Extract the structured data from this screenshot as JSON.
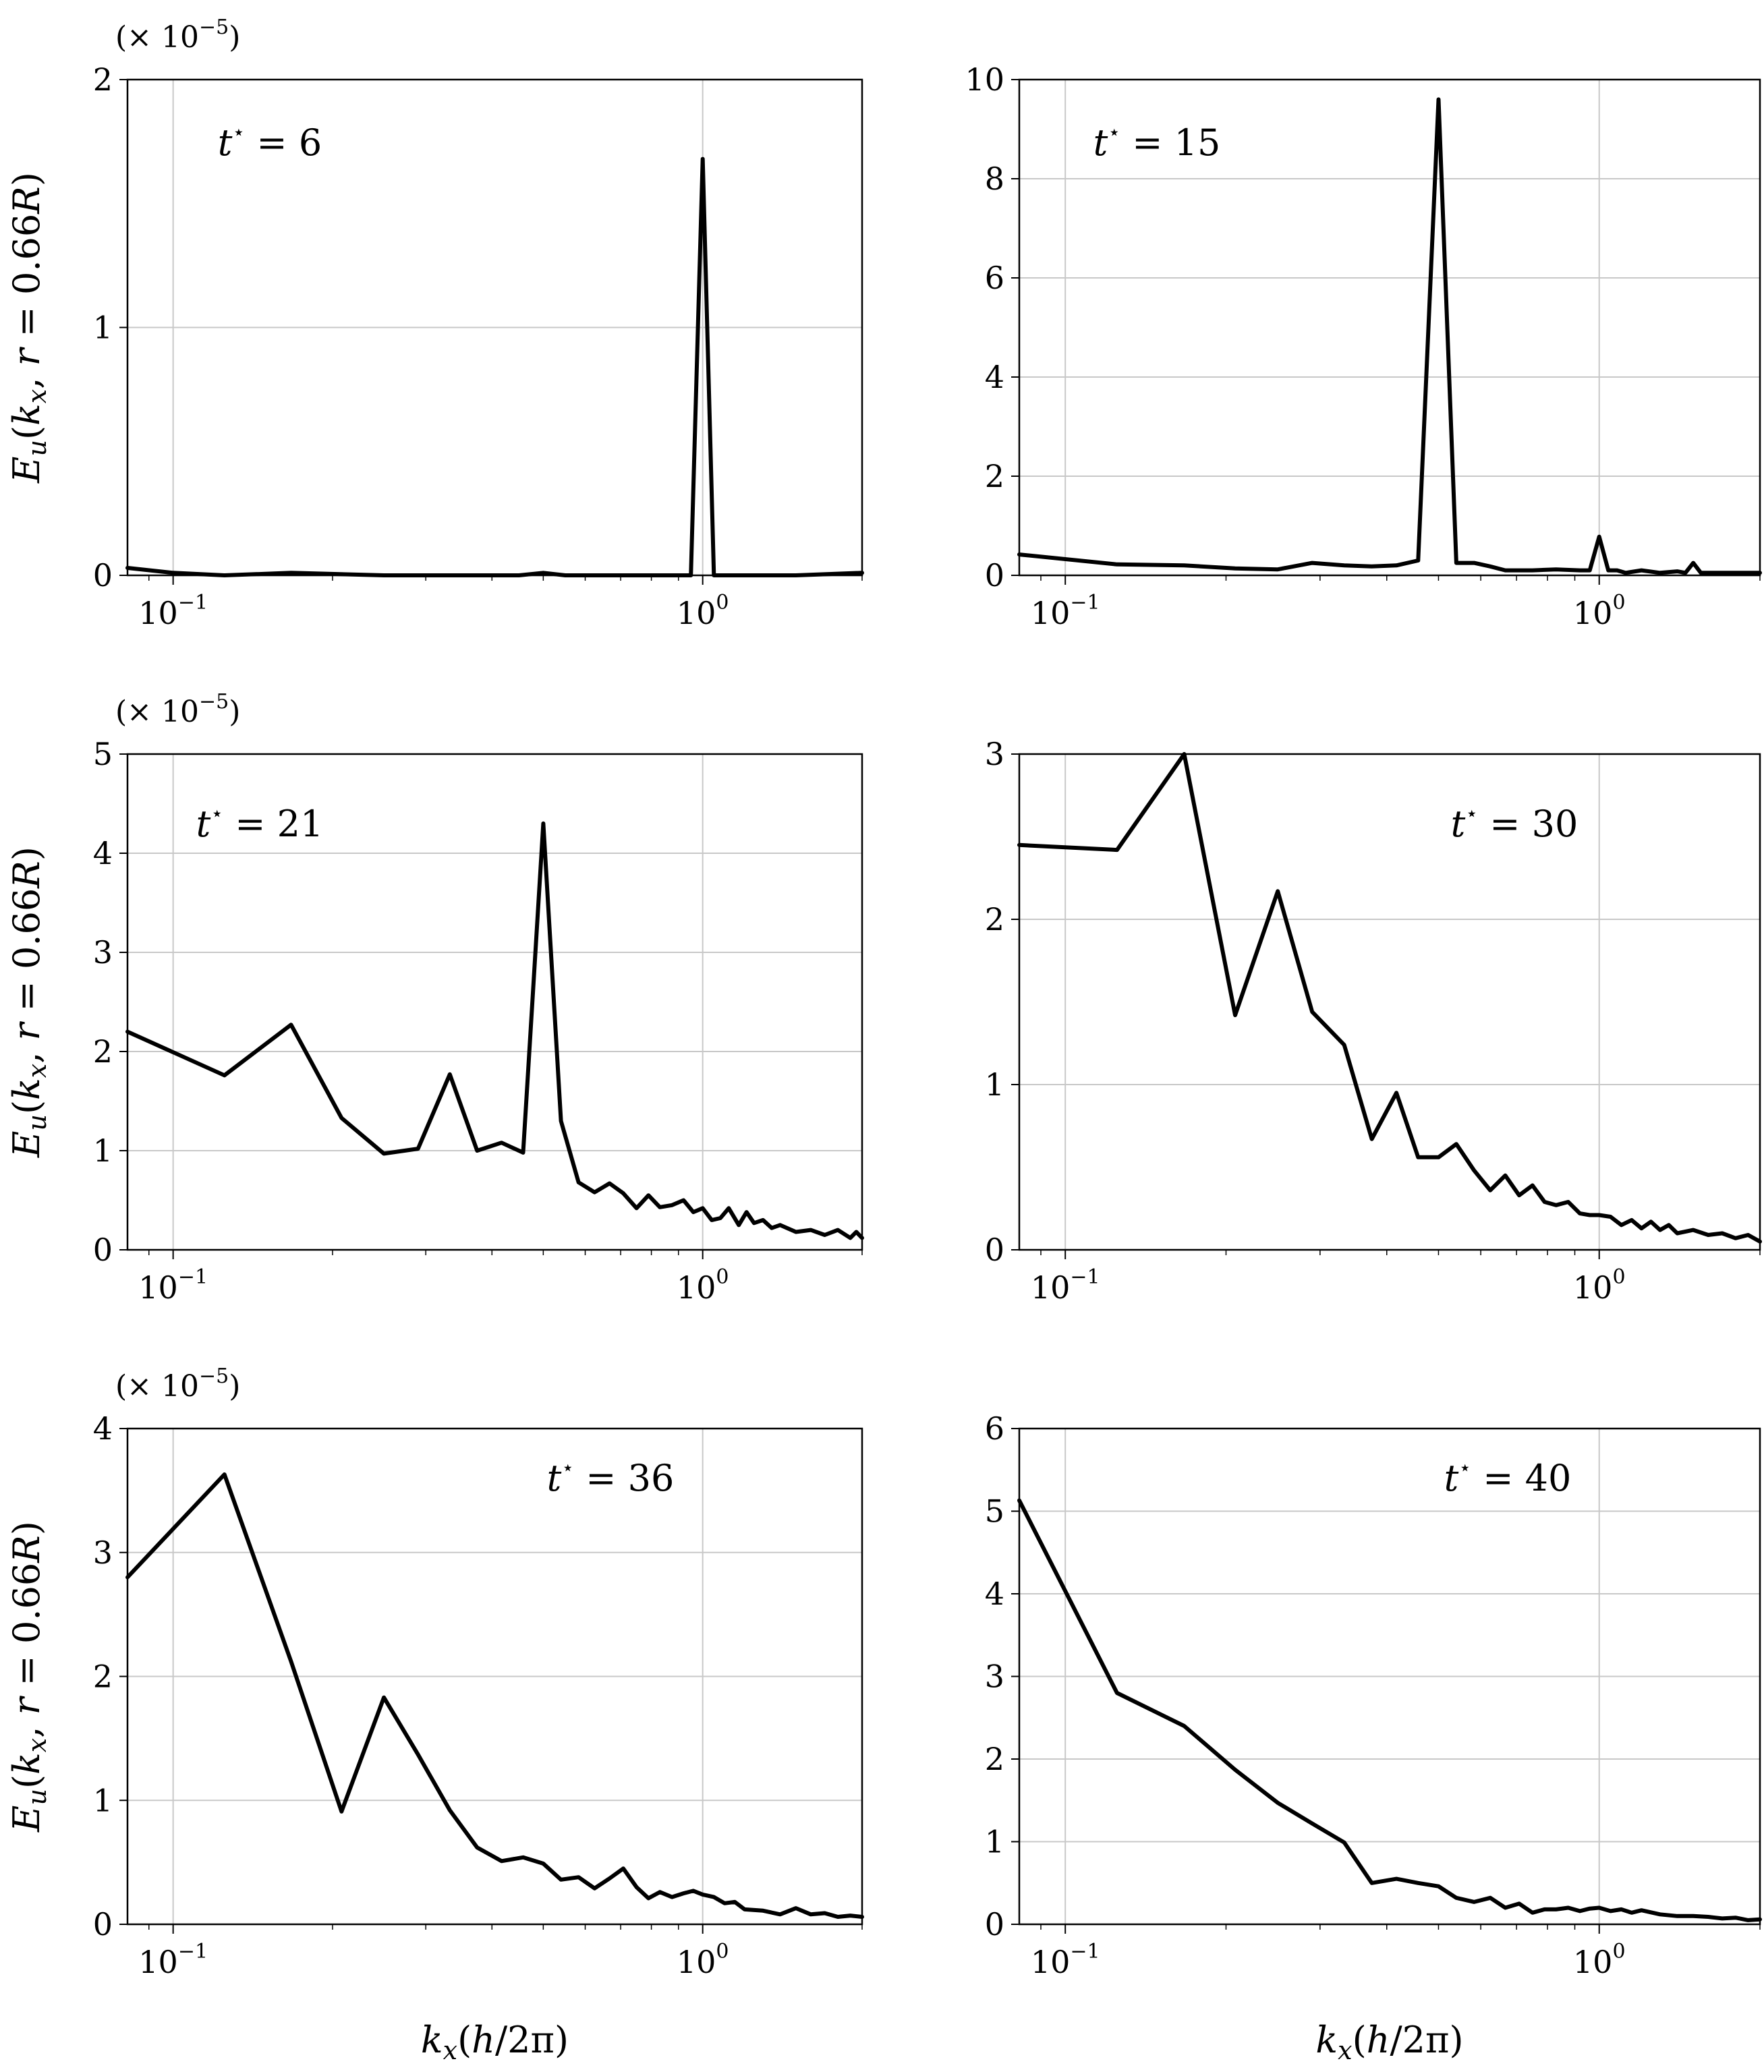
{
  "figure": {
    "ylabel_shared": "E_u(k_x, r = 0.66R)",
    "xlabel_shared": "k_x(h/2π)"
  },
  "chart_data": [
    {
      "type": "line",
      "panel": "top-left",
      "annotation": {
        "symbol": "t",
        "sup": "⋆",
        "rest": " = 6"
      },
      "multiplier": {
        "base": "(× 10",
        "exp": "−5",
        "close": ")"
      },
      "xscale": "log",
      "xlim": [
        0.082,
        2.0
      ],
      "ylim": [
        0,
        2
      ],
      "yticks": [
        0,
        1,
        2
      ],
      "yticklabels": [
        "0",
        "1",
        "2"
      ],
      "xticks": [
        {
          "value": 0.1,
          "base": "10",
          "exp": "−1"
        },
        {
          "value": 1.0,
          "base": "10",
          "exp": "0"
        }
      ],
      "ylabel": "E_u(k_x, r = 0.66R)",
      "xlabel": "",
      "series": [
        {
          "name": "t*=6",
          "x": [
            0.082,
            0.1,
            0.125,
            0.167,
            0.25,
            0.333,
            0.45,
            0.5,
            0.55,
            0.6,
            0.95,
            1.0,
            1.05,
            1.1,
            1.5,
            2.0
          ],
          "y": [
            0.03,
            0.01,
            0.0,
            0.01,
            0.0,
            0.0,
            0.0,
            0.01,
            0.0,
            0.0,
            0.0,
            1.68,
            0.0,
            0.0,
            0.0,
            0.01
          ]
        }
      ]
    },
    {
      "type": "line",
      "panel": "top-right",
      "annotation": {
        "symbol": "t",
        "sup": "⋆",
        "rest": " = 15"
      },
      "multiplier": null,
      "xscale": "log",
      "xlim": [
        0.082,
        2.0
      ],
      "ylim": [
        0,
        10
      ],
      "yticks": [
        0,
        2,
        4,
        6,
        8,
        10
      ],
      "yticklabels": [
        "0",
        "2",
        "4",
        "6",
        "8",
        "10"
      ],
      "xticks": [
        {
          "value": 0.1,
          "base": "10",
          "exp": "−1"
        },
        {
          "value": 1.0,
          "base": "10",
          "exp": "0"
        }
      ],
      "ylabel": "",
      "xlabel": "",
      "series": [
        {
          "name": "t*=15",
          "x": [
            0.082,
            0.125,
            0.167,
            0.208,
            0.25,
            0.29,
            0.333,
            0.375,
            0.417,
            0.458,
            0.5,
            0.54,
            0.583,
            0.625,
            0.667,
            0.75,
            0.83,
            0.92,
            0.96,
            1.0,
            1.04,
            1.08,
            1.12,
            1.2,
            1.3,
            1.4,
            1.45,
            1.5,
            1.55,
            1.7,
            2.0
          ],
          "y": [
            0.42,
            0.22,
            0.2,
            0.14,
            0.12,
            0.25,
            0.2,
            0.18,
            0.2,
            0.3,
            9.6,
            0.25,
            0.25,
            0.18,
            0.1,
            0.1,
            0.12,
            0.1,
            0.1,
            0.78,
            0.1,
            0.1,
            0.05,
            0.1,
            0.05,
            0.08,
            0.05,
            0.25,
            0.05,
            0.05,
            0.05
          ]
        }
      ]
    },
    {
      "type": "line",
      "panel": "middle-left",
      "annotation": {
        "symbol": "t",
        "sup": "⋆",
        "rest": " = 21"
      },
      "multiplier": {
        "base": "(× 10",
        "exp": "−5",
        "close": ")"
      },
      "xscale": "log",
      "xlim": [
        0.082,
        2.0
      ],
      "ylim": [
        0,
        5
      ],
      "yticks": [
        0,
        1,
        2,
        3,
        4,
        5
      ],
      "yticklabels": [
        "0",
        "1",
        "2",
        "3",
        "4",
        "5"
      ],
      "xticks": [
        {
          "value": 0.1,
          "base": "10",
          "exp": "−1"
        },
        {
          "value": 1.0,
          "base": "10",
          "exp": "0"
        }
      ],
      "ylabel": "E_u(k_x, r = 0.66R)",
      "xlabel": "",
      "series": [
        {
          "name": "t*=21",
          "x": [
            0.082,
            0.125,
            0.167,
            0.208,
            0.25,
            0.29,
            0.333,
            0.375,
            0.417,
            0.458,
            0.5,
            0.54,
            0.583,
            0.625,
            0.667,
            0.708,
            0.75,
            0.79,
            0.83,
            0.875,
            0.92,
            0.96,
            1.0,
            1.04,
            1.08,
            1.12,
            1.17,
            1.21,
            1.25,
            1.3,
            1.35,
            1.4,
            1.5,
            1.6,
            1.7,
            1.8,
            1.9,
            1.95,
            2.0
          ],
          "y": [
            2.2,
            1.76,
            2.27,
            1.33,
            0.97,
            1.02,
            1.77,
            1.0,
            1.08,
            0.98,
            4.3,
            1.3,
            0.68,
            0.58,
            0.67,
            0.57,
            0.42,
            0.55,
            0.43,
            0.45,
            0.5,
            0.38,
            0.42,
            0.3,
            0.32,
            0.42,
            0.25,
            0.38,
            0.27,
            0.3,
            0.22,
            0.25,
            0.18,
            0.2,
            0.15,
            0.2,
            0.12,
            0.18,
            0.12
          ]
        }
      ]
    },
    {
      "type": "line",
      "panel": "middle-right",
      "annotation": {
        "symbol": "t",
        "sup": "⋆",
        "rest": " = 30"
      },
      "multiplier": null,
      "xscale": "log",
      "xlim": [
        0.082,
        2.0
      ],
      "ylim": [
        0,
        3
      ],
      "yticks": [
        0,
        1,
        2,
        3
      ],
      "yticklabels": [
        "0",
        "1",
        "2",
        "3"
      ],
      "xticks": [
        {
          "value": 0.1,
          "base": "10",
          "exp": "−1"
        },
        {
          "value": 1.0,
          "base": "10",
          "exp": "0"
        }
      ],
      "ylabel": "",
      "xlabel": "",
      "series": [
        {
          "name": "t*=30",
          "x": [
            0.082,
            0.125,
            0.167,
            0.208,
            0.25,
            0.29,
            0.333,
            0.375,
            0.417,
            0.458,
            0.5,
            0.54,
            0.583,
            0.625,
            0.667,
            0.708,
            0.75,
            0.79,
            0.83,
            0.875,
            0.92,
            0.96,
            1.0,
            1.05,
            1.1,
            1.15,
            1.2,
            1.25,
            1.3,
            1.35,
            1.4,
            1.5,
            1.6,
            1.7,
            1.8,
            1.9,
            2.0
          ],
          "y": [
            2.45,
            2.42,
            3.0,
            1.42,
            2.17,
            1.44,
            1.24,
            0.67,
            0.95,
            0.56,
            0.56,
            0.64,
            0.48,
            0.36,
            0.45,
            0.33,
            0.39,
            0.29,
            0.27,
            0.29,
            0.22,
            0.21,
            0.21,
            0.2,
            0.15,
            0.18,
            0.13,
            0.17,
            0.12,
            0.15,
            0.1,
            0.12,
            0.09,
            0.1,
            0.07,
            0.09,
            0.05
          ]
        }
      ]
    },
    {
      "type": "line",
      "panel": "bottom-left",
      "annotation": {
        "symbol": "t",
        "sup": "⋆",
        "rest": " = 36"
      },
      "multiplier": {
        "base": "(× 10",
        "exp": "−5",
        "close": ")"
      },
      "xscale": "log",
      "xlim": [
        0.082,
        2.0
      ],
      "ylim": [
        0,
        4
      ],
      "yticks": [
        0,
        1,
        2,
        3,
        4
      ],
      "yticklabels": [
        "0",
        "1",
        "2",
        "3",
        "4"
      ],
      "xticks": [
        {
          "value": 0.1,
          "base": "10",
          "exp": "−1"
        },
        {
          "value": 1.0,
          "base": "10",
          "exp": "0"
        }
      ],
      "ylabel": "E_u(k_x, r = 0.66R)",
      "xlabel": "k_x(h/2π)",
      "series": [
        {
          "name": "t*=36",
          "x": [
            0.082,
            0.125,
            0.167,
            0.208,
            0.25,
            0.29,
            0.333,
            0.375,
            0.417,
            0.458,
            0.5,
            0.54,
            0.583,
            0.625,
            0.667,
            0.708,
            0.75,
            0.79,
            0.83,
            0.875,
            0.92,
            0.96,
            1.0,
            1.05,
            1.1,
            1.15,
            1.2,
            1.3,
            1.4,
            1.5,
            1.6,
            1.7,
            1.8,
            1.9,
            2.0
          ],
          "y": [
            2.8,
            3.63,
            2.12,
            0.91,
            1.83,
            1.37,
            0.92,
            0.62,
            0.51,
            0.54,
            0.49,
            0.36,
            0.38,
            0.29,
            0.37,
            0.45,
            0.3,
            0.21,
            0.26,
            0.22,
            0.25,
            0.27,
            0.24,
            0.22,
            0.17,
            0.18,
            0.12,
            0.11,
            0.08,
            0.13,
            0.08,
            0.09,
            0.06,
            0.07,
            0.06
          ]
        }
      ]
    },
    {
      "type": "line",
      "panel": "bottom-right",
      "annotation": {
        "symbol": "t",
        "sup": "⋆",
        "rest": " = 40"
      },
      "multiplier": null,
      "xscale": "log",
      "xlim": [
        0.082,
        2.0
      ],
      "ylim": [
        0,
        6
      ],
      "yticks": [
        0,
        1,
        2,
        3,
        4,
        5,
        6
      ],
      "yticklabels": [
        "0",
        "1",
        "2",
        "3",
        "4",
        "5",
        "6"
      ],
      "xticks": [
        {
          "value": 0.1,
          "base": "10",
          "exp": "−1"
        },
        {
          "value": 1.0,
          "base": "10",
          "exp": "0"
        }
      ],
      "ylabel": "",
      "xlabel": "k_x(h/2π)",
      "series": [
        {
          "name": "t*=40",
          "x": [
            0.082,
            0.125,
            0.167,
            0.208,
            0.25,
            0.29,
            0.333,
            0.375,
            0.417,
            0.458,
            0.5,
            0.54,
            0.583,
            0.625,
            0.667,
            0.708,
            0.75,
            0.79,
            0.83,
            0.875,
            0.92,
            0.96,
            1.0,
            1.05,
            1.1,
            1.15,
            1.2,
            1.3,
            1.4,
            1.5,
            1.6,
            1.7,
            1.8,
            1.9,
            2.0
          ],
          "y": [
            5.13,
            2.8,
            2.4,
            1.87,
            1.47,
            1.22,
            0.99,
            0.5,
            0.55,
            0.5,
            0.46,
            0.32,
            0.27,
            0.32,
            0.2,
            0.25,
            0.14,
            0.18,
            0.18,
            0.2,
            0.16,
            0.19,
            0.2,
            0.16,
            0.18,
            0.14,
            0.17,
            0.12,
            0.1,
            0.1,
            0.09,
            0.07,
            0.08,
            0.05,
            0.06
          ]
        }
      ]
    }
  ]
}
